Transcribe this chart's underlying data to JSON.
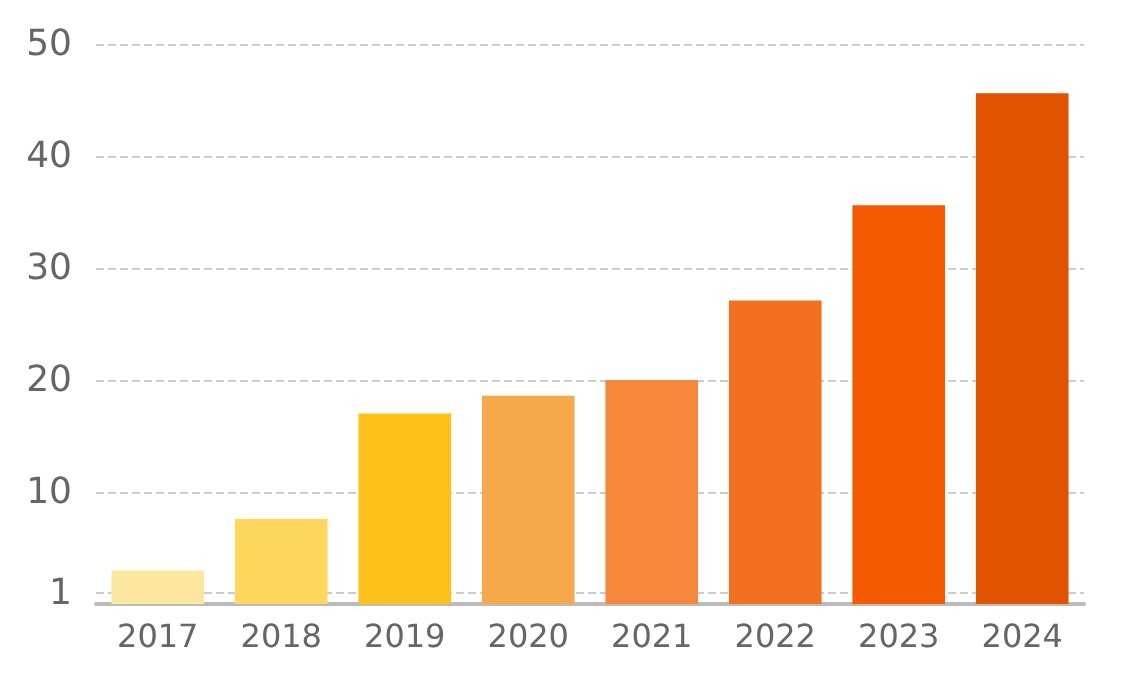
{
  "chart_data": {
    "type": "bar",
    "categories": [
      "2017",
      "2018",
      "2019",
      "2020",
      "2021",
      "2022",
      "2023",
      "2024"
    ],
    "values": [
      3,
      7.6,
      17,
      18.6,
      20,
      27.1,
      35.6,
      45.6
    ],
    "colors": [
      "#fde6a0",
      "#fed85c",
      "#fdc21a",
      "#f5a94a",
      "#f5883a",
      "#f47021",
      "#f45a00",
      "#e05300"
    ],
    "ylim": [
      0,
      50
    ],
    "yticks": [
      1,
      10,
      20,
      30,
      40,
      50
    ],
    "grid": "y"
  }
}
